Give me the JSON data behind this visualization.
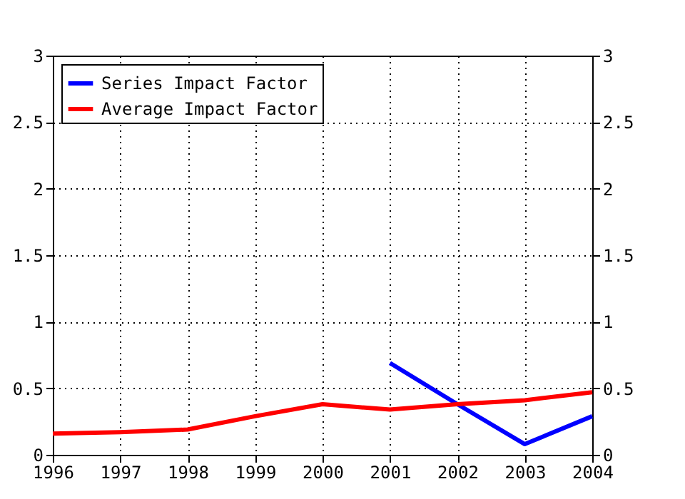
{
  "chart_data": {
    "type": "line",
    "x": [
      1996,
      1997,
      1998,
      1999,
      2000,
      2001,
      2002,
      2003,
      2004
    ],
    "series": [
      {
        "name": "Series Impact Factor",
        "color": "#0000ff",
        "values": [
          null,
          null,
          null,
          null,
          null,
          0.69,
          0.38,
          0.08,
          0.29
        ]
      },
      {
        "name": "Average Impact Factor",
        "color": "#ff0000",
        "values": [
          0.16,
          0.17,
          0.19,
          0.29,
          0.38,
          0.34,
          0.38,
          0.41,
          0.47
        ]
      }
    ],
    "xlim": [
      1996,
      2004
    ],
    "xticks": [
      1996,
      1997,
      1998,
      1999,
      2000,
      2001,
      2002,
      2003,
      2004
    ],
    "ylim": [
      0,
      3
    ],
    "yticks": [
      0,
      0.5,
      1,
      1.5,
      2,
      2.5,
      3
    ],
    "y2lim": [
      0,
      3
    ],
    "y2ticks": [
      0,
      0.5,
      1,
      1.5,
      2,
      2.5,
      3
    ],
    "grid": true,
    "legend": "top left",
    "marker": "none",
    "line_style": "solid"
  }
}
